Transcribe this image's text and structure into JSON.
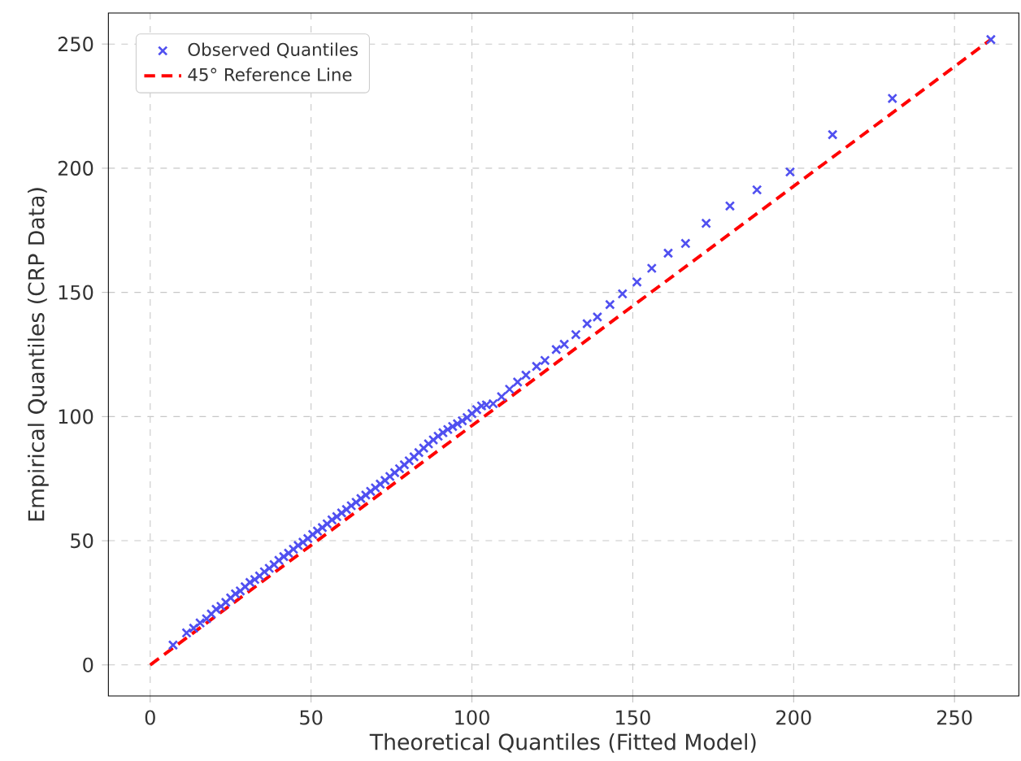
{
  "chart_data": {
    "type": "scatter",
    "xlabel": "Theoretical Quantiles (Fitted Model)",
    "ylabel": "Empirical Quantiles (CRP Data)",
    "xlim": [
      -13,
      270
    ],
    "ylim": [
      -12.5,
      262.5
    ],
    "xticks": [
      0,
      50,
      100,
      150,
      200,
      250
    ],
    "yticks": [
      0,
      50,
      100,
      150,
      200,
      250
    ],
    "grid": true,
    "legend": "top left",
    "series": [
      {
        "name": "Observed Quantiles",
        "type": "scatter",
        "color": "#5050f0",
        "marker": "cross",
        "x": [
          7.1,
          11.3,
          13.5,
          15.5,
          17.5,
          19,
          20.5,
          22,
          23.5,
          25,
          26.5,
          28,
          29.5,
          31,
          32.5,
          34,
          35.5,
          37,
          38.5,
          40,
          41.5,
          43,
          44.5,
          46,
          47.5,
          49,
          50.5,
          52,
          53.5,
          55,
          56.5,
          58,
          59.5,
          61,
          62.5,
          64,
          65.5,
          67,
          68.5,
          70,
          71.5,
          73,
          74.5,
          76,
          77.5,
          79,
          80.5,
          82,
          83.5,
          85,
          86.5,
          88,
          89.5,
          91,
          92.5,
          94,
          95.5,
          97,
          98.5,
          100,
          101.5,
          103,
          104.5,
          106.6,
          109.2,
          111.7,
          114.2,
          116.8,
          120.1,
          122.7,
          126.2,
          128.7,
          132.3,
          135.8,
          139,
          142.9,
          146.8,
          151.3,
          155.9,
          161,
          166.4,
          172.8,
          180.2,
          188.6,
          198.9,
          212.1,
          230.7,
          261.3
        ],
        "values": [
          8.0,
          12.9,
          14.8,
          16.9,
          18.6,
          20.5,
          22.4,
          23.6,
          25.2,
          27,
          28.6,
          29.8,
          31.5,
          33.2,
          34.4,
          35.8,
          37.5,
          38.9,
          40.4,
          42.1,
          43.6,
          45.0,
          46.6,
          48.1,
          49.4,
          50.9,
          52.5,
          53.9,
          55.3,
          56.8,
          58.4,
          59.7,
          61.2,
          62.6,
          64.1,
          65.5,
          67,
          68.4,
          69.9,
          71.3,
          72.8,
          74.3,
          75.9,
          77.4,
          79,
          80.6,
          82.2,
          83.8,
          85.5,
          87.3,
          89,
          90.6,
          92.1,
          93.5,
          94.8,
          96,
          97.1,
          98.3,
          99.6,
          101.2,
          102.8,
          104.3,
          104.7,
          105.2,
          108,
          111,
          113.9,
          116.7,
          120.2,
          122.6,
          127,
          129.1,
          133,
          137.4,
          140.1,
          145.1,
          149.4,
          154.2,
          159.7,
          165.8,
          169.7,
          177.8,
          184.8,
          191.3,
          198.5,
          213.5,
          228.1,
          251.8
        ]
      },
      {
        "name": "45° Reference Line",
        "type": "line",
        "color": "#ff0000",
        "line_style": "dashed",
        "marker": "none",
        "x": [
          0,
          261.3
        ],
        "values": [
          0,
          251.8
        ]
      }
    ]
  }
}
